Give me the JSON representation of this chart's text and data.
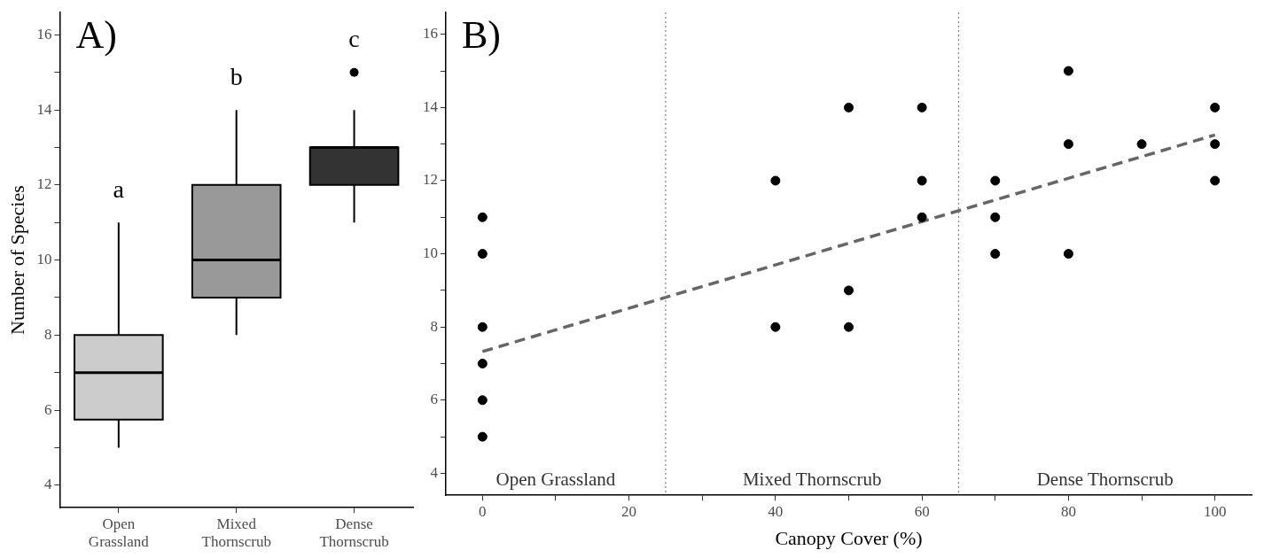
{
  "chart_data": [
    {
      "type": "box",
      "ylabel": "Number of Species",
      "categories": [
        "Open Grassland",
        "Mixed Thornscrub",
        "Dense Thornscrub"
      ],
      "colors": [
        "#cccccc",
        "#999999",
        "#333333"
      ],
      "boxes": [
        {
          "low": 5,
          "q1": 5.75,
          "median": 7,
          "q3": 8,
          "high": 11
        },
        {
          "low": 8,
          "q1": 9,
          "median": 10,
          "q3": 12,
          "high": 14
        },
        {
          "low": 11,
          "q1": 12,
          "median": 13,
          "q3": 13,
          "high": 14,
          "outliers": [
            15
          ]
        }
      ],
      "ylim": [
        3.4,
        16.6
      ],
      "yticks": [
        4,
        {
          "value": 5,
          "label": null
        },
        6,
        {
          "value": 7,
          "label": null
        },
        8,
        {
          "value": 9,
          "label": null
        },
        10,
        {
          "value": 11,
          "label": null
        },
        12,
        {
          "value": 13,
          "label": null
        },
        14,
        {
          "value": 15,
          "label": null
        },
        16
      ],
      "annotations": [
        "A)",
        "a",
        "b",
        "c"
      ],
      "legend": false
    },
    {
      "type": "scatter",
      "xlabel": "Canopy Cover (%)",
      "marker": "circle",
      "series": [
        {
          "type": "scatter",
          "color": "#000000",
          "x": [
            0,
            0,
            0,
            0,
            0,
            0,
            40,
            40,
            50,
            50,
            50,
            60,
            60,
            60,
            70,
            70,
            70,
            80,
            80,
            80,
            90,
            100,
            100,
            100
          ],
          "values": [
            11,
            10,
            8,
            7,
            6,
            5,
            12,
            8,
            14,
            9,
            8,
            14,
            12,
            11,
            12,
            11,
            10,
            15,
            13,
            10,
            13,
            14,
            13,
            12
          ]
        },
        {
          "type": "line",
          "color": "#666666",
          "line_style": "dashed",
          "marker": "none",
          "x": [
            0,
            100
          ],
          "values": [
            7.33,
            13.25
          ]
        }
      ],
      "xlim": [
        -5,
        105
      ],
      "xticks": [
        0,
        {
          "value": 10,
          "label": null
        },
        20,
        {
          "value": 30,
          "label": null
        },
        40,
        {
          "value": 50,
          "label": null
        },
        60,
        {
          "value": 70,
          "label": null
        },
        80,
        {
          "value": 90,
          "label": null
        },
        100
      ],
      "ylim": [
        3.4,
        16.6
      ],
      "yticks": [
        4,
        {
          "value": 5,
          "label": null
        },
        6,
        {
          "value": 7,
          "label": null
        },
        8,
        {
          "value": 9,
          "label": null
        },
        10,
        {
          "value": 11,
          "label": null
        },
        12,
        {
          "value": 13,
          "label": null
        },
        14,
        {
          "value": 15,
          "label": null
        },
        16
      ],
      "ref_lines": [
        {
          "axis": "x",
          "value": 25,
          "color": "#808080",
          "line_style": "dotted"
        },
        {
          "axis": "x",
          "value": 65,
          "color": "#808080",
          "line_style": "dotted"
        }
      ],
      "annotations": [
        "B)",
        "Open Grassland",
        "Mixed Thornscrub",
        "Dense Thornscrub"
      ],
      "legend": false
    }
  ]
}
